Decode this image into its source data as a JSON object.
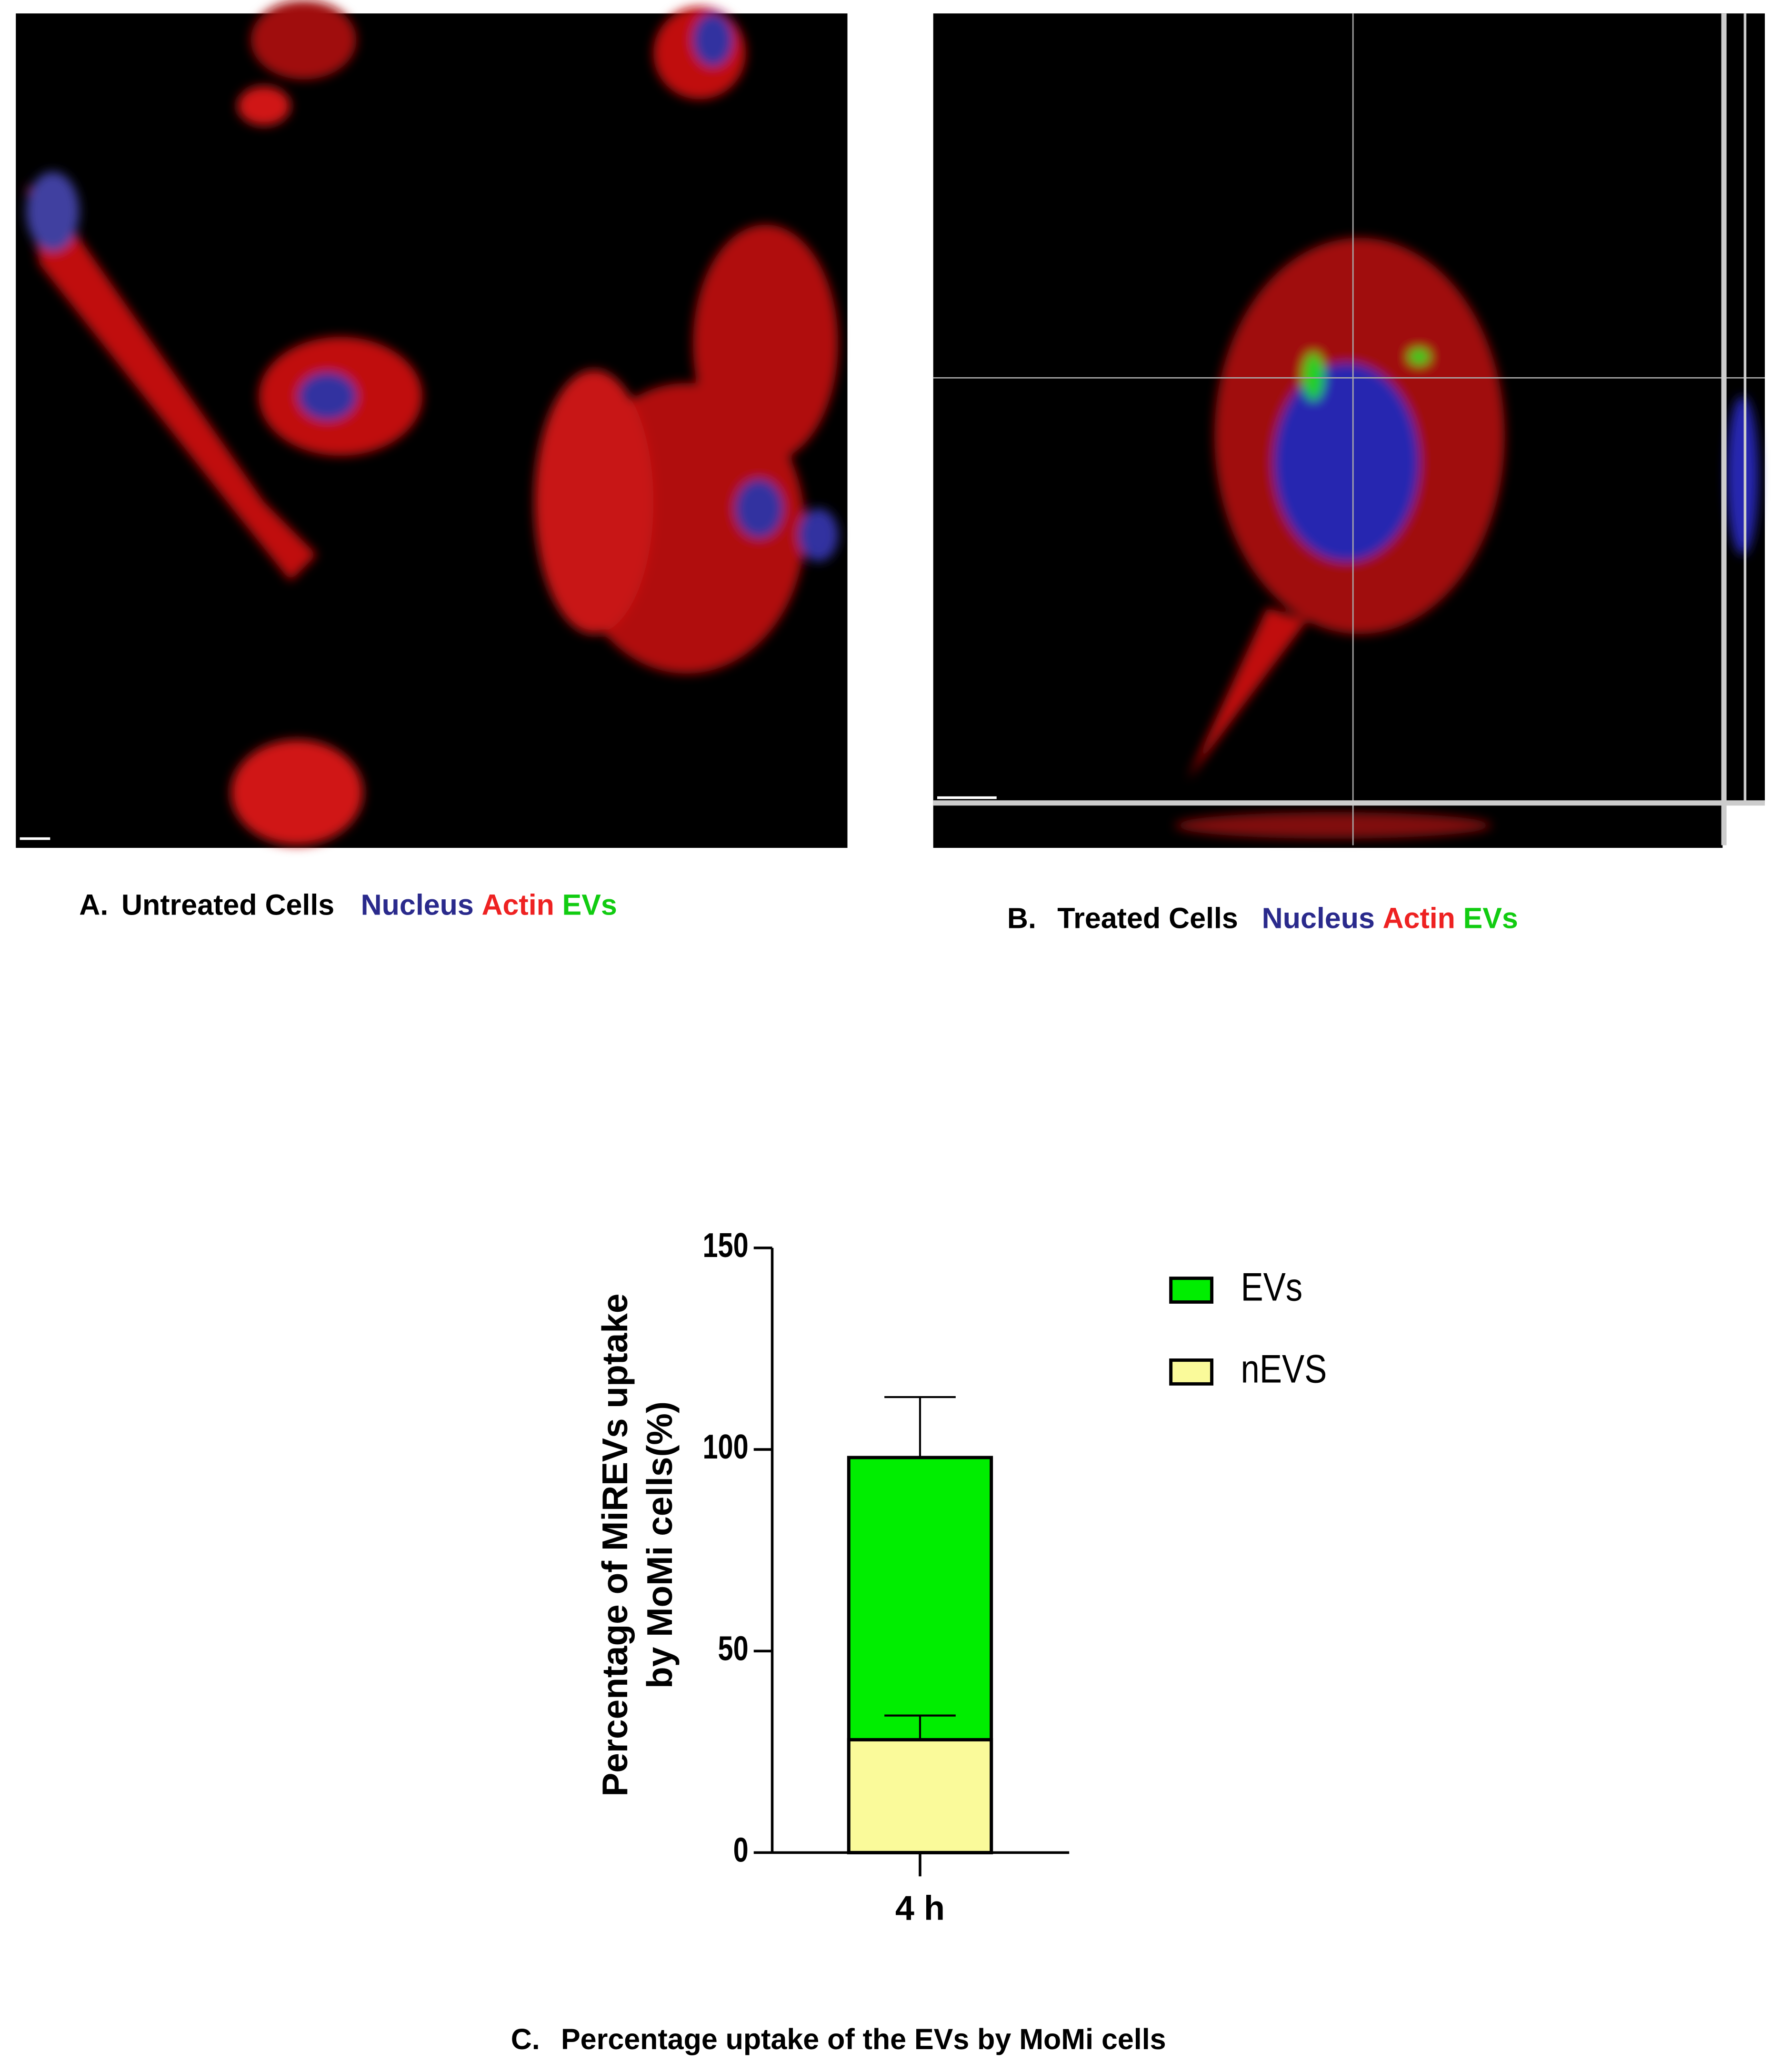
{
  "panels": [
    {
      "letter": "A.",
      "caption": "Untreated Cells",
      "stains": [
        "Nucleus",
        "Actin",
        "EVs"
      ]
    },
    {
      "letter": "B.",
      "caption": "Treated Cells",
      "stains": [
        "Nucleus",
        "Actin",
        "EVs"
      ]
    },
    {
      "letter": "C.",
      "caption": "Percentage uptake of the EVs by MoMi  cells"
    }
  ],
  "chart_data": {
    "type": "bar",
    "categories": [
      "4 h"
    ],
    "series": [
      {
        "name": "EVs",
        "color": "#00ee00",
        "values": [
          98
        ],
        "errors": [
          15
        ]
      },
      {
        "name": "nEVS",
        "color": "#fafa9a",
        "values": [
          28
        ],
        "errors": [
          6
        ]
      }
    ],
    "y_label": [
      "Percentage of MiREVs uptake",
      "by MoMi cells(%)"
    ],
    "ylim": [
      0,
      150
    ],
    "yticks": [
      0,
      50,
      100,
      150
    ],
    "legend": "right"
  }
}
